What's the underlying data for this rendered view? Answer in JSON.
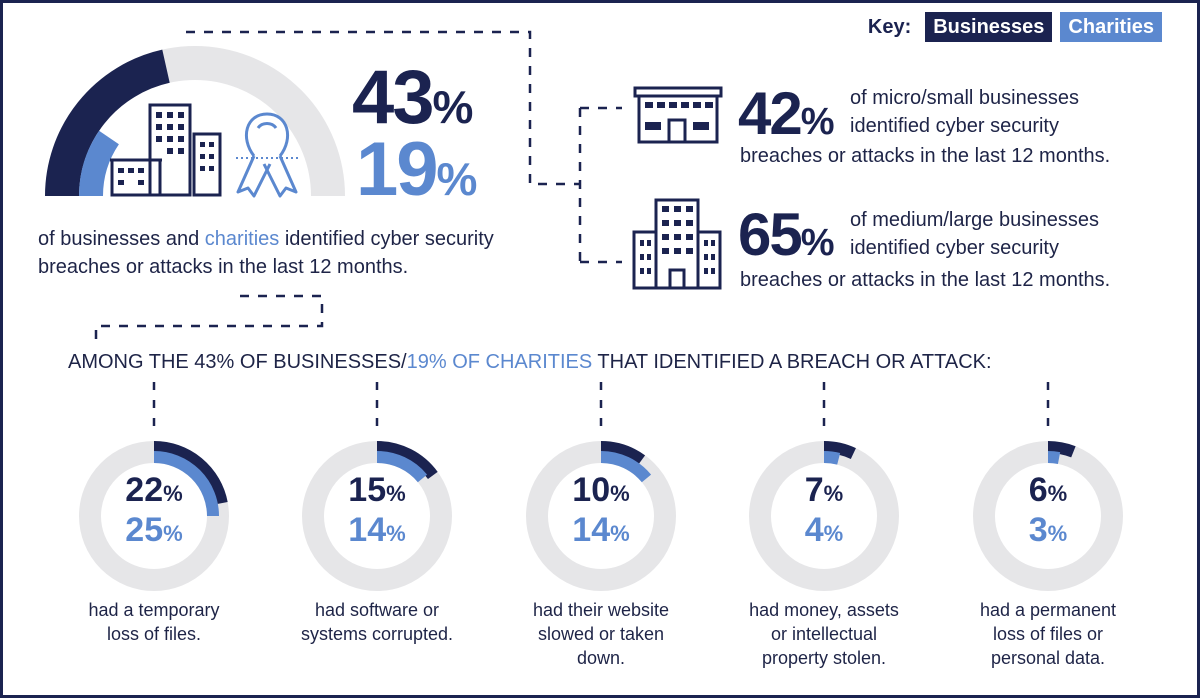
{
  "colors": {
    "businesses": "#1b2350",
    "charities": "#5b88cf",
    "track": "#e6e6e8"
  },
  "key": {
    "label": "Key:",
    "businesses": "Businesses",
    "charities": "Charities"
  },
  "headline": {
    "businesses_value": "43",
    "charities_value": "19",
    "pct": "%",
    "text_a": "of businesses and ",
    "text_hl": "charities",
    "text_b": " identified cyber security breaches or attacks in the last 12 months."
  },
  "sizes": [
    {
      "value": "42",
      "pct": "%",
      "text_a": "of micro/small businesses identified cyber security",
      "text_b": "breaches or attacks in the last 12 months."
    },
    {
      "value": "65",
      "pct": "%",
      "text_a": "of medium/large businesses identified cyber security",
      "text_b": "breaches or attacks in the last 12 months."
    }
  ],
  "section_header": {
    "a": "AMONG THE 43% OF BUSINESSES/",
    "hl": "19% OF CHARITIES",
    "b": " THAT IDENTIFIED A BREACH OR ATTACK:"
  },
  "chart_data": {
    "type": "bar",
    "categories": [
      "had a temporary loss of files.",
      "had software or systems corrupted.",
      "had their website slowed or taken down.",
      "had money, assets or intellectual property stolen.",
      "had a permanent loss of files or personal data."
    ],
    "series": [
      {
        "name": "Businesses",
        "values": [
          22,
          15,
          10,
          7,
          6
        ]
      },
      {
        "name": "Charities",
        "values": [
          25,
          14,
          14,
          4,
          3
        ]
      }
    ],
    "headline": {
      "businesses": 43,
      "charities": 19
    },
    "size_bands": {
      "micro/small businesses": 42,
      "medium/large businesses": 65
    },
    "unit": "%"
  },
  "donuts": [
    {
      "b": "22",
      "c": "25",
      "pct": "%",
      "l1": "had a temporary",
      "l2": "loss of files.",
      "l3": ""
    },
    {
      "b": "15",
      "c": "14",
      "pct": "%",
      "l1": "had software or",
      "l2": "systems corrupted.",
      "l3": ""
    },
    {
      "b": "10",
      "c": "14",
      "pct": "%",
      "l1": "had their website",
      "l2": "slowed or taken",
      "l3": "down."
    },
    {
      "b": "7",
      "c": "4",
      "pct": "%",
      "l1": "had money, assets",
      "l2": "or intellectual",
      "l3": "property stolen."
    },
    {
      "b": "6",
      "c": "3",
      "pct": "%",
      "l1": "had a permanent",
      "l2": "loss of files or",
      "l3": "personal data."
    }
  ]
}
